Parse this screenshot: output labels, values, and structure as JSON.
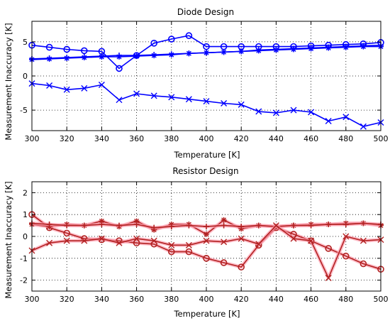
{
  "colors": {
    "diode": "#0000ff",
    "resistor": "#b22222",
    "resistor_glow": "#ff9fb0"
  },
  "chart_data": [
    {
      "type": "line",
      "title": "Diode Design",
      "xlabel": "Temperature [K]",
      "ylabel": "Measurement Inaccuracy [K]",
      "xlim": [
        300,
        500
      ],
      "ylim": [
        -8,
        8
      ],
      "xticks": [
        300,
        320,
        340,
        360,
        380,
        400,
        420,
        440,
        460,
        480,
        500
      ],
      "yticks": [
        -5,
        0,
        5
      ],
      "grid": true,
      "series": [
        {
          "marker": "o",
          "x": [
            300,
            310,
            320,
            330,
            340,
            350,
            360,
            370,
            380,
            390,
            400,
            410,
            420,
            430,
            440,
            450,
            460,
            470,
            480,
            490,
            500
          ],
          "values": [
            4.5,
            4.2,
            3.9,
            3.7,
            3.6,
            1.1,
            3.0,
            4.8,
            5.4,
            5.9,
            4.3,
            4.3,
            4.3,
            4.3,
            4.3,
            4.3,
            4.4,
            4.5,
            4.6,
            4.7,
            4.9
          ]
        },
        {
          "marker": "*",
          "x": [
            300,
            310,
            320,
            330,
            340,
            350,
            360,
            370,
            380,
            390,
            400,
            410,
            420,
            430,
            440,
            450,
            460,
            470,
            480,
            490,
            500
          ],
          "values": [
            2.4,
            2.5,
            2.6,
            2.7,
            2.8,
            2.8,
            2.9,
            3.0,
            3.1,
            3.3,
            3.4,
            3.5,
            3.6,
            3.7,
            3.8,
            3.9,
            4.0,
            4.1,
            4.2,
            4.3,
            4.3
          ]
        },
        {
          "marker": "+",
          "x": [
            300,
            310,
            320,
            330,
            340,
            350,
            360,
            370,
            380,
            390,
            400,
            410,
            420,
            430,
            440,
            450,
            460,
            470,
            480,
            490,
            500
          ],
          "values": [
            2.5,
            2.6,
            2.7,
            2.8,
            2.9,
            3.0,
            3.0,
            3.1,
            3.2,
            3.3,
            3.4,
            3.5,
            3.6,
            3.8,
            3.9,
            4.0,
            4.1,
            4.2,
            4.3,
            4.4,
            4.5
          ]
        },
        {
          "marker": "x",
          "x": [
            300,
            310,
            320,
            330,
            340,
            350,
            360,
            370,
            380,
            390,
            400,
            410,
            420,
            430,
            440,
            450,
            460,
            470,
            480,
            490,
            500
          ],
          "values": [
            -1.1,
            -1.4,
            -2.0,
            -1.8,
            -1.3,
            -3.5,
            -2.6,
            -2.9,
            -3.1,
            -3.4,
            -3.7,
            -4.0,
            -4.2,
            -5.2,
            -5.4,
            -5.0,
            -5.3,
            -6.6,
            -6.0,
            -7.4,
            -6.8
          ]
        }
      ]
    },
    {
      "type": "line",
      "title": "Resistor Design",
      "xlabel": "Temperature [K]",
      "ylabel": "Measurement Inaccuracy [K]",
      "xlim": [
        300,
        500
      ],
      "ylim": [
        -2.5,
        2.5
      ],
      "xticks": [
        300,
        320,
        340,
        360,
        380,
        400,
        420,
        440,
        460,
        480,
        500
      ],
      "yticks": [
        -2,
        -1,
        0,
        1,
        2
      ],
      "grid": true,
      "series": [
        {
          "marker": "o",
          "x": [
            300,
            310,
            320,
            330,
            340,
            350,
            360,
            370,
            380,
            390,
            400,
            410,
            420,
            430,
            440,
            450,
            460,
            470,
            480,
            490,
            500
          ],
          "values": [
            1.0,
            0.4,
            0.15,
            -0.1,
            -0.15,
            -0.2,
            -0.3,
            -0.35,
            -0.7,
            -0.7,
            -1.0,
            -1.2,
            -1.4,
            -0.4,
            0.4,
            0.1,
            -0.2,
            -0.55,
            -0.9,
            -1.25,
            -1.5
          ]
        },
        {
          "marker": "*",
          "x": [
            300,
            310,
            320,
            330,
            340,
            350,
            360,
            370,
            380,
            390,
            400,
            410,
            420,
            430,
            440,
            450,
            460,
            470,
            480,
            490,
            500
          ],
          "values": [
            0.55,
            0.45,
            0.55,
            0.5,
            0.7,
            0.45,
            0.7,
            0.3,
            0.55,
            0.55,
            0.1,
            0.75,
            0.35,
            0.5,
            0.45,
            0.5,
            0.55,
            0.55,
            0.6,
            0.6,
            0.5
          ]
        },
        {
          "marker": "+",
          "x": [
            300,
            310,
            320,
            330,
            340,
            350,
            360,
            370,
            380,
            390,
            400,
            410,
            420,
            430,
            440,
            450,
            460,
            470,
            480,
            490,
            500
          ],
          "values": [
            0.6,
            0.55,
            0.5,
            0.5,
            0.55,
            0.5,
            0.55,
            0.4,
            0.45,
            0.5,
            0.45,
            0.5,
            0.45,
            0.5,
            0.45,
            0.5,
            0.5,
            0.55,
            0.55,
            0.6,
            0.55
          ]
        },
        {
          "marker": "x",
          "x": [
            300,
            310,
            320,
            330,
            340,
            350,
            360,
            370,
            380,
            390,
            400,
            410,
            420,
            430,
            440,
            450,
            460,
            470,
            480,
            490,
            500
          ],
          "values": [
            -0.65,
            -0.3,
            -0.2,
            -0.2,
            -0.1,
            -0.3,
            -0.1,
            -0.2,
            -0.4,
            -0.4,
            -0.2,
            -0.25,
            -0.1,
            -0.35,
            0.5,
            -0.1,
            -0.2,
            -1.9,
            0.0,
            -0.2,
            -0.15
          ]
        }
      ]
    }
  ]
}
